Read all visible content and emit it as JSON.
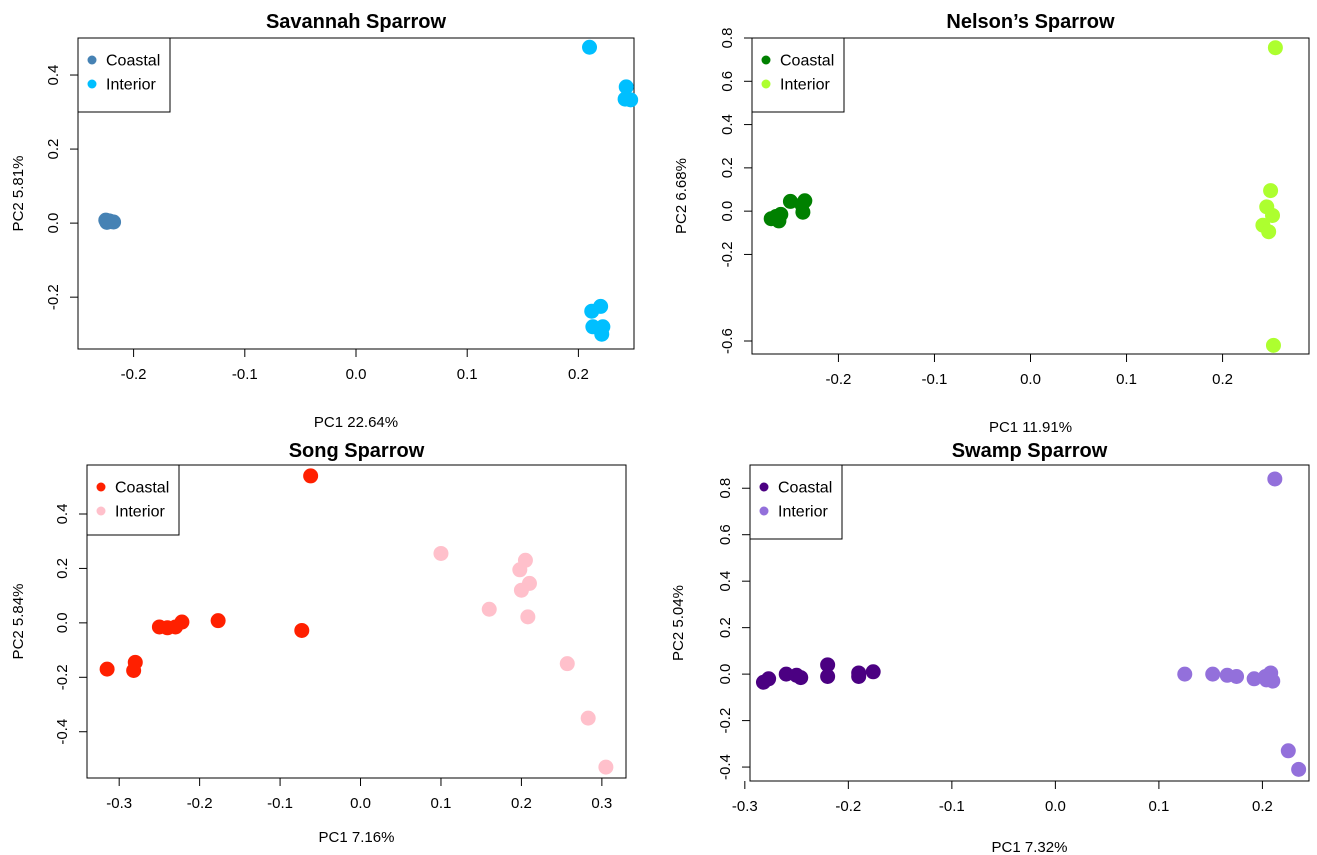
{
  "chart_data": [
    {
      "type": "scatter",
      "title": "Savannah Sparrow",
      "xlabel": "PC1 22.64%",
      "ylabel": "PC2 5.81%",
      "xlim": [
        -0.25,
        0.25
      ],
      "ylim": [
        -0.34,
        0.5
      ],
      "xticks": [
        -0.2,
        -0.1,
        0.0,
        0.1,
        0.2
      ],
      "yticks": [
        -0.2,
        0.0,
        0.2,
        0.4
      ],
      "xtick_labels": [
        "-0.2",
        "-0.1",
        "0.0",
        "0.1",
        "0.2"
      ],
      "ytick_labels": [
        "-0.2",
        "0.0",
        "0.2",
        "0.4"
      ],
      "grid": false,
      "legend": "top-left",
      "series": [
        {
          "name": "Coastal",
          "color": "#4682B4",
          "points": [
            [
              -0.225,
              0.008
            ],
            [
              -0.222,
              0.006
            ],
            [
              -0.22,
              0.004
            ],
            [
              -0.218,
              0.003
            ],
            [
              -0.224,
              0.002
            ]
          ]
        },
        {
          "name": "Interior",
          "color": "#00BFFF",
          "points": [
            [
              0.21,
              0.475
            ],
            [
              0.243,
              0.368
            ],
            [
              0.242,
              0.335
            ],
            [
              0.247,
              0.333
            ],
            [
              0.22,
              -0.225
            ],
            [
              0.212,
              -0.238
            ],
            [
              0.213,
              -0.28
            ],
            [
              0.222,
              -0.28
            ],
            [
              0.221,
              -0.3
            ]
          ]
        }
      ]
    },
    {
      "type": "scatter",
      "title": "Nelson’s Sparrow",
      "xlabel": "PC1 11.91%",
      "ylabel": "PC2 6.68%",
      "xlim": [
        -0.29,
        0.29
      ],
      "ylim": [
        -0.66,
        0.8
      ],
      "xticks": [
        -0.2,
        -0.1,
        0.0,
        0.1,
        0.2
      ],
      "yticks": [
        -0.6,
        -0.2,
        0.0,
        0.2,
        0.4,
        0.6,
        0.8
      ],
      "xtick_labels": [
        "-0.2",
        "-0.1",
        "0.0",
        "0.1",
        "0.2"
      ],
      "ytick_labels": [
        "-0.6",
        "-0.2",
        "0.0",
        "0.2",
        "0.4",
        "0.6",
        "0.8"
      ],
      "grid": false,
      "legend": "top-left",
      "series": [
        {
          "name": "Coastal",
          "color": "#008000",
          "points": [
            [
              -0.27,
              -0.035
            ],
            [
              -0.265,
              -0.025
            ],
            [
              -0.262,
              -0.045
            ],
            [
              -0.26,
              -0.015
            ],
            [
              -0.25,
              0.045
            ],
            [
              -0.238,
              0.03
            ],
            [
              -0.235,
              0.048
            ],
            [
              -0.237,
              -0.005
            ]
          ]
        },
        {
          "name": "Interior",
          "color": "#ADFF2F",
          "points": [
            [
              0.255,
              0.755
            ],
            [
              0.25,
              0.095
            ],
            [
              0.246,
              0.02
            ],
            [
              0.252,
              -0.02
            ],
            [
              0.242,
              -0.065
            ],
            [
              0.248,
              -0.095
            ],
            [
              0.253,
              -0.62
            ]
          ]
        }
      ]
    },
    {
      "type": "scatter",
      "title": "Song Sparrow",
      "xlabel": "PC1 7.16%",
      "ylabel": "PC2 5.84%",
      "xlim": [
        -0.34,
        0.33
      ],
      "ylim": [
        -0.57,
        0.58
      ],
      "xticks": [
        -0.3,
        -0.2,
        -0.1,
        0.0,
        0.1,
        0.2,
        0.3
      ],
      "yticks": [
        -0.4,
        -0.2,
        0.0,
        0.2,
        0.4
      ],
      "xtick_labels": [
        "-0.3",
        "-0.2",
        "-0.1",
        "0.0",
        "0.1",
        "0.2",
        "0.3"
      ],
      "ytick_labels": [
        "-0.4",
        "-0.2",
        "0.0",
        "0.2",
        "0.4"
      ],
      "grid": false,
      "legend": "top-left",
      "series": [
        {
          "name": "Coastal",
          "color": "#FF2000",
          "points": [
            [
              -0.315,
              -0.17
            ],
            [
              -0.28,
              -0.145
            ],
            [
              -0.282,
              -0.175
            ],
            [
              -0.25,
              -0.015
            ],
            [
              -0.24,
              -0.018
            ],
            [
              -0.23,
              -0.015
            ],
            [
              -0.222,
              0.003
            ],
            [
              -0.177,
              0.008
            ],
            [
              -0.073,
              -0.028
            ],
            [
              -0.062,
              0.54
            ]
          ]
        },
        {
          "name": "Interior",
          "color": "#FFC0CB",
          "points": [
            [
              0.1,
              0.255
            ],
            [
              0.205,
              0.23
            ],
            [
              0.198,
              0.195
            ],
            [
              0.21,
              0.145
            ],
            [
              0.2,
              0.12
            ],
            [
              0.16,
              0.05
            ],
            [
              0.208,
              0.022
            ],
            [
              0.257,
              -0.15
            ],
            [
              0.283,
              -0.35
            ],
            [
              0.305,
              -0.53
            ]
          ]
        }
      ]
    },
    {
      "type": "scatter",
      "title": "Swamp Sparrow",
      "xlabel": "PC1 7.32%",
      "ylabel": "PC2 5.04%",
      "xlim": [
        -0.295,
        0.245
      ],
      "ylim": [
        -0.46,
        0.9
      ],
      "xticks": [
        -0.3,
        -0.2,
        -0.1,
        0.0,
        0.1,
        0.2
      ],
      "yticks": [
        -0.4,
        -0.2,
        0.0,
        0.2,
        0.4,
        0.6,
        0.8
      ],
      "xtick_labels": [
        "-0.3",
        "-0.2",
        "-0.1",
        "0.0",
        "0.1",
        "0.2"
      ],
      "ytick_labels": [
        "-0.4",
        "-0.2",
        "0.0",
        "0.2",
        "0.4",
        "0.6",
        "0.8"
      ],
      "grid": false,
      "legend": "top-left",
      "series": [
        {
          "name": "Coastal",
          "color": "#4B0082",
          "points": [
            [
              -0.282,
              -0.035
            ],
            [
              -0.277,
              -0.02
            ],
            [
              -0.26,
              0.0
            ],
            [
              -0.25,
              -0.005
            ],
            [
              -0.246,
              -0.015
            ],
            [
              -0.22,
              0.04
            ],
            [
              -0.22,
              -0.01
            ],
            [
              -0.19,
              0.005
            ],
            [
              -0.19,
              -0.01
            ],
            [
              -0.176,
              0.01
            ]
          ]
        },
        {
          "name": "Interior",
          "color": "#9370DB",
          "points": [
            [
              0.125,
              0.0
            ],
            [
              0.152,
              0.0
            ],
            [
              0.166,
              -0.005
            ],
            [
              0.175,
              -0.01
            ],
            [
              0.192,
              -0.02
            ],
            [
              0.203,
              -0.01
            ],
            [
              0.208,
              0.005
            ],
            [
              0.21,
              -0.03
            ],
            [
              0.204,
              -0.025
            ],
            [
              0.212,
              0.84
            ],
            [
              0.225,
              -0.33
            ],
            [
              0.235,
              -0.41
            ]
          ]
        }
      ]
    }
  ]
}
